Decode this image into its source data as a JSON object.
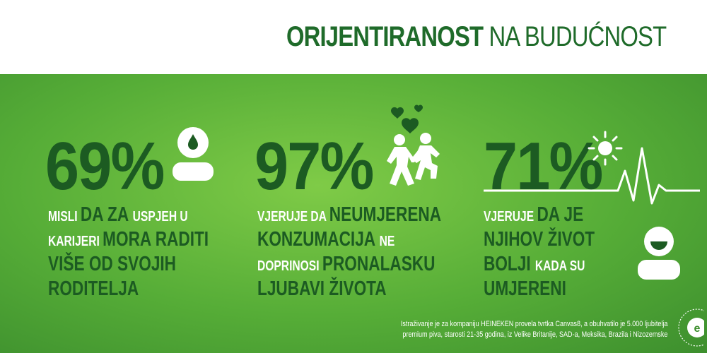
{
  "title": {
    "bold": "ORIJENTIRANOST",
    "light": " NA BUDUĆNOST"
  },
  "stats": [
    {
      "value": "69%",
      "lines": [
        [
          {
            "t": "MISLI ",
            "s": "sm"
          },
          {
            "t": "DA ZA ",
            "s": "big"
          },
          {
            "t": "USPJEH U",
            "s": "sm"
          }
        ],
        [
          {
            "t": "KARIJERI ",
            "s": "sm"
          },
          {
            "t": "MORA RADITI",
            "s": "big"
          }
        ],
        [
          {
            "t": "VIŠE OD SVOJIH",
            "s": "big"
          }
        ],
        [
          {
            "t": "RODITELJA",
            "s": "big"
          }
        ]
      ]
    },
    {
      "value": "97%",
      "lines": [
        [
          {
            "t": "VJERUJE DA ",
            "s": "sm"
          },
          {
            "t": "NEUMJERENA",
            "s": "big"
          }
        ],
        [
          {
            "t": "KONZUMACIJA ",
            "s": "big"
          },
          {
            "t": "NE",
            "s": "sm"
          }
        ],
        [
          {
            "t": "DOPRINOSI ",
            "s": "sm"
          },
          {
            "t": "PRONALASKU",
            "s": "big"
          }
        ],
        [
          {
            "t": "LJUBAVI ŽIVOTA",
            "s": "big"
          }
        ]
      ]
    },
    {
      "value": "71%",
      "lines": [
        [
          {
            "t": "VJERUJE ",
            "s": "sm"
          },
          {
            "t": "DA JE",
            "s": "big"
          }
        ],
        [
          {
            "t": "NJIHOV ŽIVOT",
            "s": "big"
          }
        ],
        [
          {
            "t": "BOLJI ",
            "s": "big"
          },
          {
            "t": "KADA SU",
            "s": "sm"
          }
        ],
        [
          {
            "t": "UMJERENI",
            "s": "big"
          }
        ]
      ]
    }
  ],
  "footnote": {
    "line1": "Istraživanje je za kompaniju HEINEKEN provela tvrtka Canvas8, a obuhvatilo je 5.000 ljubitelja",
    "line2": "premium piva, starosti 21-35 godina, iz Velike Britanije, SAD-a, Meksika, Brazila i Nizozemske"
  },
  "icons": {
    "stat1": "sad-person-icon",
    "stat2": "couple-hearts-icon",
    "stat3": "sun-icon",
    "stat3b": "heartbeat-line-icon",
    "stat3c": "happy-person-icon",
    "seal": "enjoy-responsibly-seal-icon"
  },
  "colors": {
    "green_dark": "#1c5b22",
    "green_panel": "#56ad37",
    "title": "#1f6b2a"
  }
}
